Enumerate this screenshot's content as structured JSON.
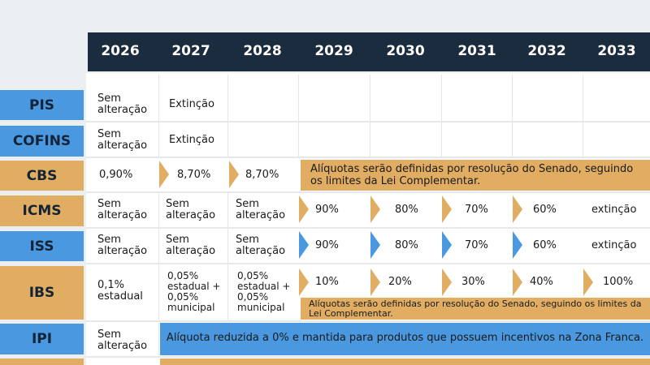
{
  "years": [
    "2026",
    "2027",
    "2028",
    "2029",
    "2030",
    "2031",
    "2032",
    "2033"
  ],
  "colors": {
    "header": "#1b2c3f",
    "blue": "#4a98e0",
    "orange": "#e0ad62"
  },
  "rows": {
    "pis": {
      "label": "PIS",
      "c2026": "Sem alteração",
      "c2027": "Extinção"
    },
    "cofins": {
      "label": "COFINS",
      "c2026": "Sem alteração",
      "c2027": "Extinção"
    },
    "cbs": {
      "label": "CBS",
      "c2026": "0,90%",
      "c2027": "8,70%",
      "c2028": "8,70%",
      "note": "Alíquotas serão definidas por resolução do Senado, seguindo os limites da Lei Complementar."
    },
    "icms": {
      "label": "ICMS",
      "c2026": "Sem alteração",
      "c2027": "Sem alteração",
      "c2028": "Sem alteração",
      "c2029": "90%",
      "c2030": "80%",
      "c2031": "70%",
      "c2032": "60%",
      "c2033": "extinção"
    },
    "iss": {
      "label": "ISS",
      "c2026": "Sem alteração",
      "c2027": "Sem alteração",
      "c2028": "Sem alteração",
      "c2029": "90%",
      "c2030": "80%",
      "c2031": "70%",
      "c2032": "60%",
      "c2033": "extinção"
    },
    "ibs": {
      "label": "IBS",
      "c2026": "0,1% estadual",
      "c2027": "0,05% estadual + 0,05% municipal",
      "c2028": "0,05% estadual + 0,05% municipal",
      "c2029": "10%",
      "c2030": "20%",
      "c2031": "30%",
      "c2032": "40%",
      "c2033": "100%",
      "note": "Alíquotas serão definidas por resolução do Senado, seguindo os limites da Lei Complementar."
    },
    "ipi": {
      "label": "IPI",
      "c2026": "Sem alteração",
      "note": "Alíquota reduzida a 0% e mantida para produtos que possuem incentivos na Zona Franca."
    }
  }
}
